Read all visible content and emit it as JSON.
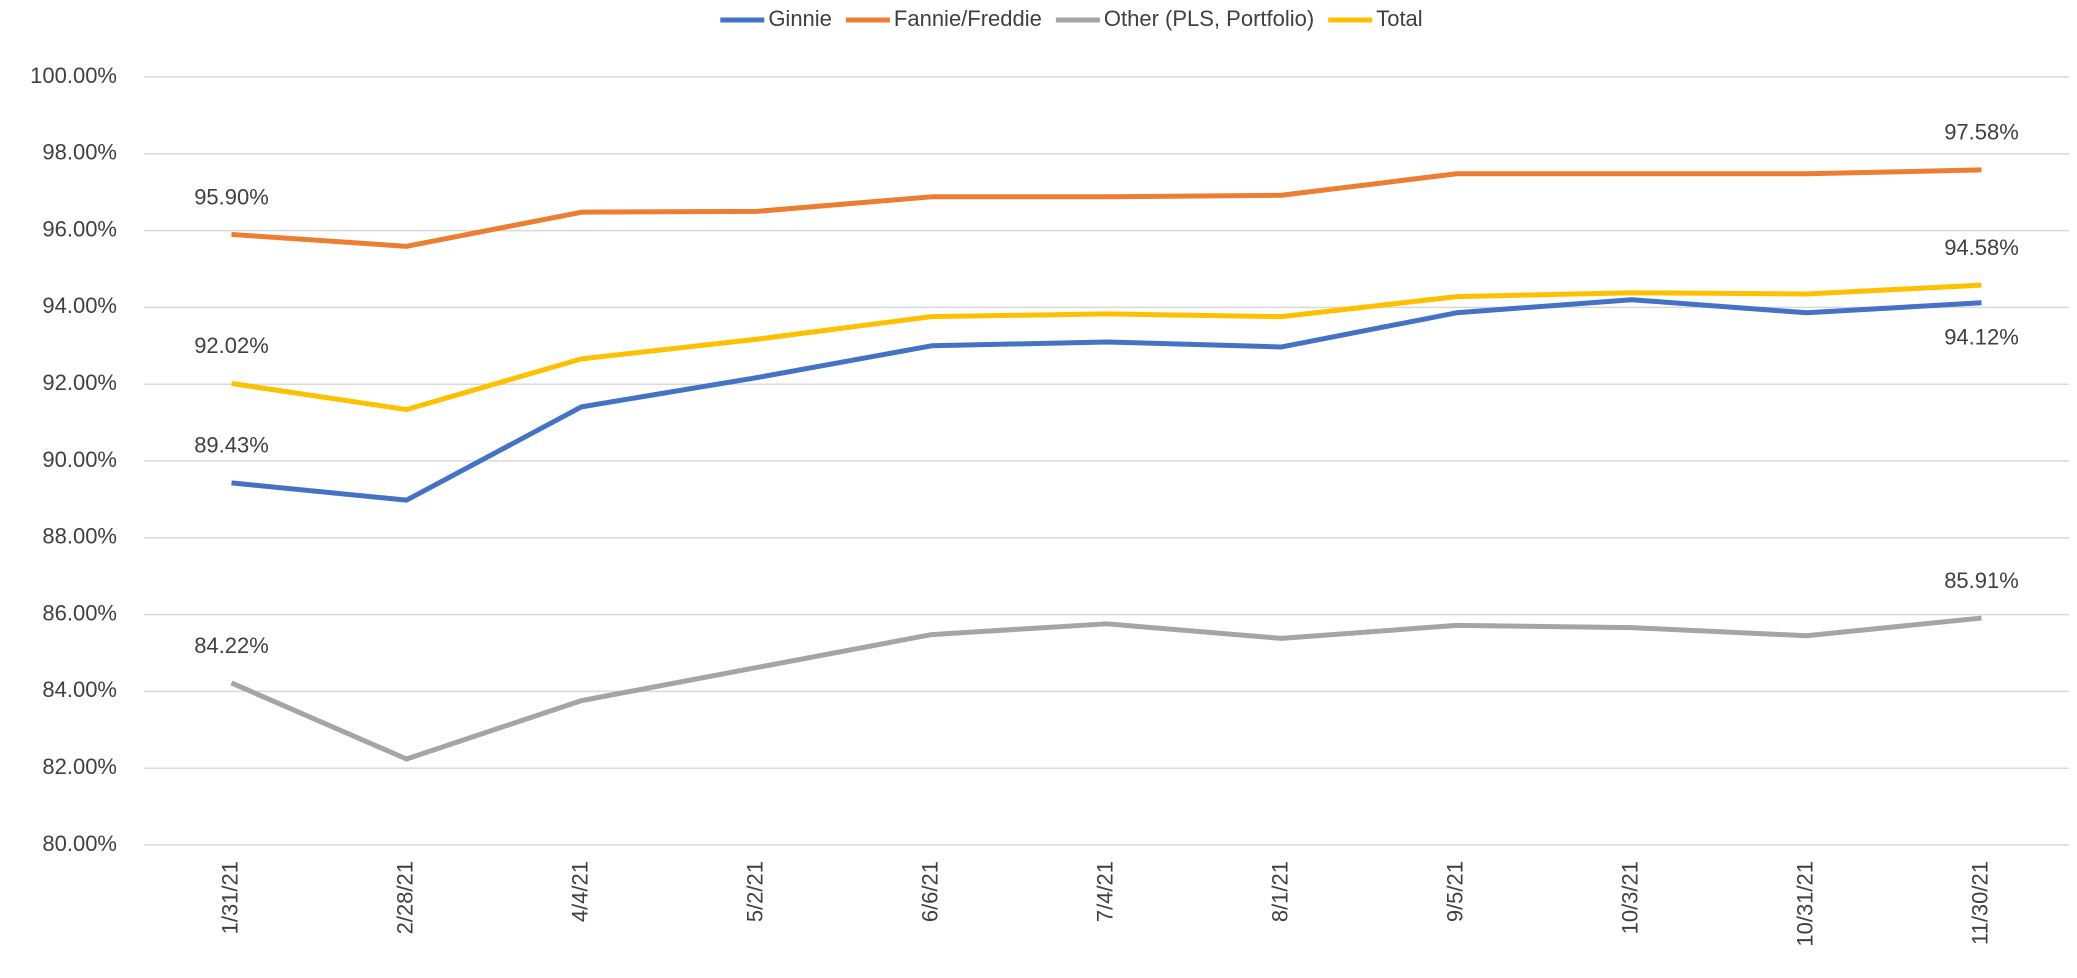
{
  "chart_data": {
    "type": "line",
    "categories": [
      "1/31/21",
      "2/28/21",
      "4/4/21",
      "5/2/21",
      "6/6/21",
      "7/4/21",
      "8/1/21",
      "9/5/21",
      "10/3/21",
      "10/31/21",
      "11/30/21"
    ],
    "series": [
      {
        "name": "Ginnie",
        "color": "#4472c4",
        "values": [
          89.43,
          88.98,
          91.41,
          92.17,
          93.0,
          93.1,
          92.97,
          93.86,
          94.2,
          93.86,
          94.12
        ],
        "value_labels": [
          "89.43%",
          null,
          null,
          null,
          null,
          null,
          null,
          null,
          null,
          null,
          "94.12%"
        ]
      },
      {
        "name": "Fannie/Freddie",
        "color": "#ed7d31",
        "values": [
          95.9,
          95.59,
          96.48,
          96.5,
          96.88,
          96.88,
          96.92,
          97.48,
          97.48,
          97.48,
          97.58
        ],
        "value_labels": [
          "95.90%",
          null,
          null,
          null,
          null,
          null,
          null,
          null,
          null,
          null,
          "97.58%"
        ]
      },
      {
        "name": "Other (PLS, Portfolio)",
        "color": "#a5a5a5",
        "values": [
          84.22,
          82.24,
          83.76,
          84.62,
          85.48,
          85.76,
          85.38,
          85.72,
          85.66,
          85.45,
          85.91
        ],
        "value_labels": [
          "84.22%",
          null,
          null,
          null,
          null,
          null,
          null,
          null,
          null,
          null,
          "85.91%"
        ]
      },
      {
        "name": "Total",
        "color": "#ffc000",
        "values": [
          92.02,
          91.34,
          92.66,
          93.17,
          93.76,
          93.83,
          93.76,
          94.28,
          94.38,
          94.35,
          94.58
        ],
        "value_labels": [
          "92.02%",
          null,
          null,
          null,
          null,
          null,
          null,
          null,
          null,
          null,
          "94.58%"
        ]
      }
    ],
    "ylim": [
      80,
      100
    ],
    "yticks": [
      {
        "value": 80,
        "label": "80.00%"
      },
      {
        "value": 82,
        "label": "82.00%"
      },
      {
        "value": 84,
        "label": "84.00%"
      },
      {
        "value": 86,
        "label": "86.00%"
      },
      {
        "value": 88,
        "label": "88.00%"
      },
      {
        "value": 90,
        "label": "90.00%"
      },
      {
        "value": 92,
        "label": "92.00%"
      },
      {
        "value": 94,
        "label": "94.00%"
      },
      {
        "value": 96,
        "label": "96.00%"
      },
      {
        "value": 98,
        "label": "98.00%"
      },
      {
        "value": 100,
        "label": "100.00%"
      }
    ],
    "grid": true,
    "legend": "top"
  }
}
